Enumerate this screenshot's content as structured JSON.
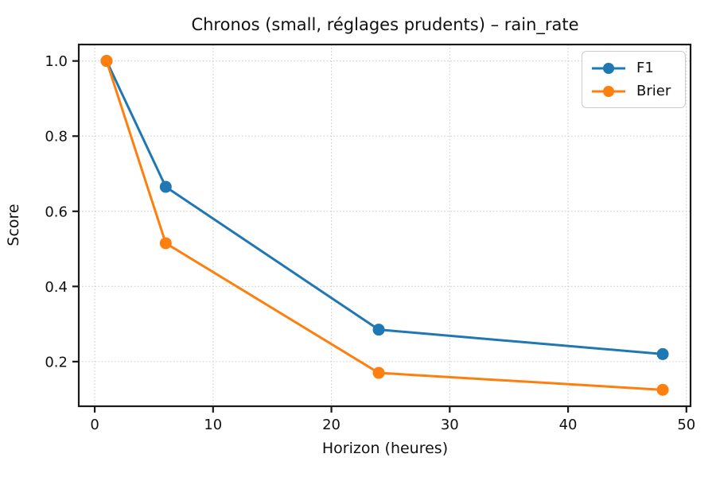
{
  "chart_data": {
    "type": "line",
    "title": "Chronos (small, réglages prudents) – rain_rate",
    "xlabel": "Horizon (heures)",
    "ylabel": "Score",
    "x": [
      1,
      6,
      24,
      48
    ],
    "series": [
      {
        "name": "F1",
        "color": "#1f77b4",
        "values": [
          1.0,
          0.665,
          0.285,
          0.22
        ]
      },
      {
        "name": "Brier",
        "color": "#ff7f0e",
        "values": [
          1.0,
          0.515,
          0.17,
          0.125
        ]
      }
    ],
    "xlim": [
      -1.35,
      50.35
    ],
    "ylim": [
      0.08125,
      1.04375
    ],
    "xticks": {
      "values": [
        0,
        10,
        20,
        30,
        40,
        50
      ],
      "labels": [
        "0",
        "10",
        "20",
        "30",
        "40",
        "50"
      ]
    },
    "yticks": {
      "values": [
        0.2,
        0.4,
        0.6,
        0.8,
        1.0
      ],
      "labels": [
        "0.2",
        "0.4",
        "0.6",
        "0.8",
        "1.0"
      ]
    },
    "grid": "dotted",
    "legend_position": "upper-right",
    "marker": "circle",
    "background_color": "#ffffff",
    "spine_color": "#1a1a1a"
  }
}
